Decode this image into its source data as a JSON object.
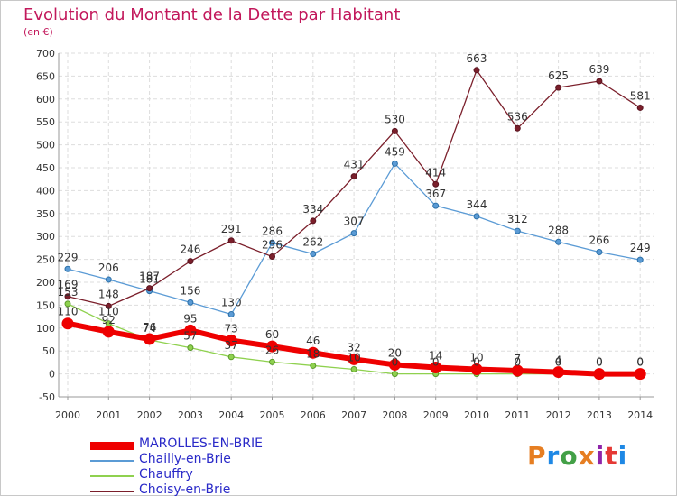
{
  "title": "Evolution du Montant de la Dette par Habitant",
  "subtitle": "(en €)",
  "logo": {
    "text": "Proxiti",
    "colors": [
      "#e67e22",
      "#1e88e5",
      "#43a047",
      "#e67e22",
      "#8e24aa",
      "#e53935",
      "#1e88e5"
    ]
  },
  "chart_data": {
    "type": "line",
    "title": "Evolution du Montant de la Dette par Habitant",
    "ylabel": "(en €)",
    "xlabel": "",
    "ylim": [
      -50,
      700
    ],
    "ytick_labels": [
      "700",
      "650",
      "600",
      "550",
      "500",
      "450",
      "400",
      "350",
      "300",
      "250",
      "200",
      "150",
      "100",
      "50",
      "0",
      "-50"
    ],
    "x": [
      "2000",
      "2001",
      "2002",
      "2003",
      "2004",
      "2005",
      "2006",
      "2007",
      "2008",
      "2009",
      "2010",
      "2011",
      "2012",
      "2013",
      "2014"
    ],
    "grid": true,
    "legend_position": "bottom-left",
    "series": [
      {
        "name": "MAROLLES-EN-BRIE",
        "color": "#ee0000",
        "legend_text_color": "#2a2ac8",
        "values": [
          110,
          92,
          76,
          95,
          73,
          60,
          46,
          32,
          20,
          14,
          10,
          7,
          4,
          0,
          0
        ],
        "labels": [
          "110",
          "92",
          "76",
          "95",
          "73",
          "60",
          "46",
          "32",
          "20",
          "14",
          "10",
          "7",
          "4",
          "0",
          "0"
        ]
      },
      {
        "name": "Chailly-en-Brie",
        "color": "#5b9bd5",
        "legend_text_color": "#2a2ac8",
        "values": [
          229,
          206,
          181,
          156,
          130,
          286,
          262,
          307,
          459,
          367,
          344,
          312,
          288,
          266,
          249
        ],
        "labels": [
          "229",
          "206",
          "181",
          "156",
          "130",
          "286",
          "262",
          "307",
          "459",
          "367",
          "344",
          "312",
          "288",
          "266",
          "249"
        ]
      },
      {
        "name": "Chauffry",
        "color": "#8fd14f",
        "legend_text_color": "#2a2ac8",
        "values": [
          153,
          110,
          74,
          57,
          37,
          26,
          18,
          10,
          0,
          0,
          0,
          0,
          0,
          0,
          0
        ],
        "labels": [
          "153",
          "110",
          "74",
          "57",
          "37",
          "26",
          "18",
          "10",
          "0",
          "0",
          "0",
          "0",
          "0",
          "0",
          "0"
        ]
      },
      {
        "name": "Choisy-en-Brie",
        "color": "#7b1f2b",
        "legend_text_color": "#2a2ac8",
        "values": [
          169,
          148,
          187,
          246,
          291,
          256,
          334,
          431,
          530,
          414,
          663,
          536,
          625,
          639,
          581
        ],
        "labels": [
          "169",
          "148",
          "187",
          "246",
          "291",
          "256",
          "334",
          "431",
          "530",
          "414",
          "663",
          "536",
          "625",
          "639",
          "581"
        ]
      }
    ]
  }
}
